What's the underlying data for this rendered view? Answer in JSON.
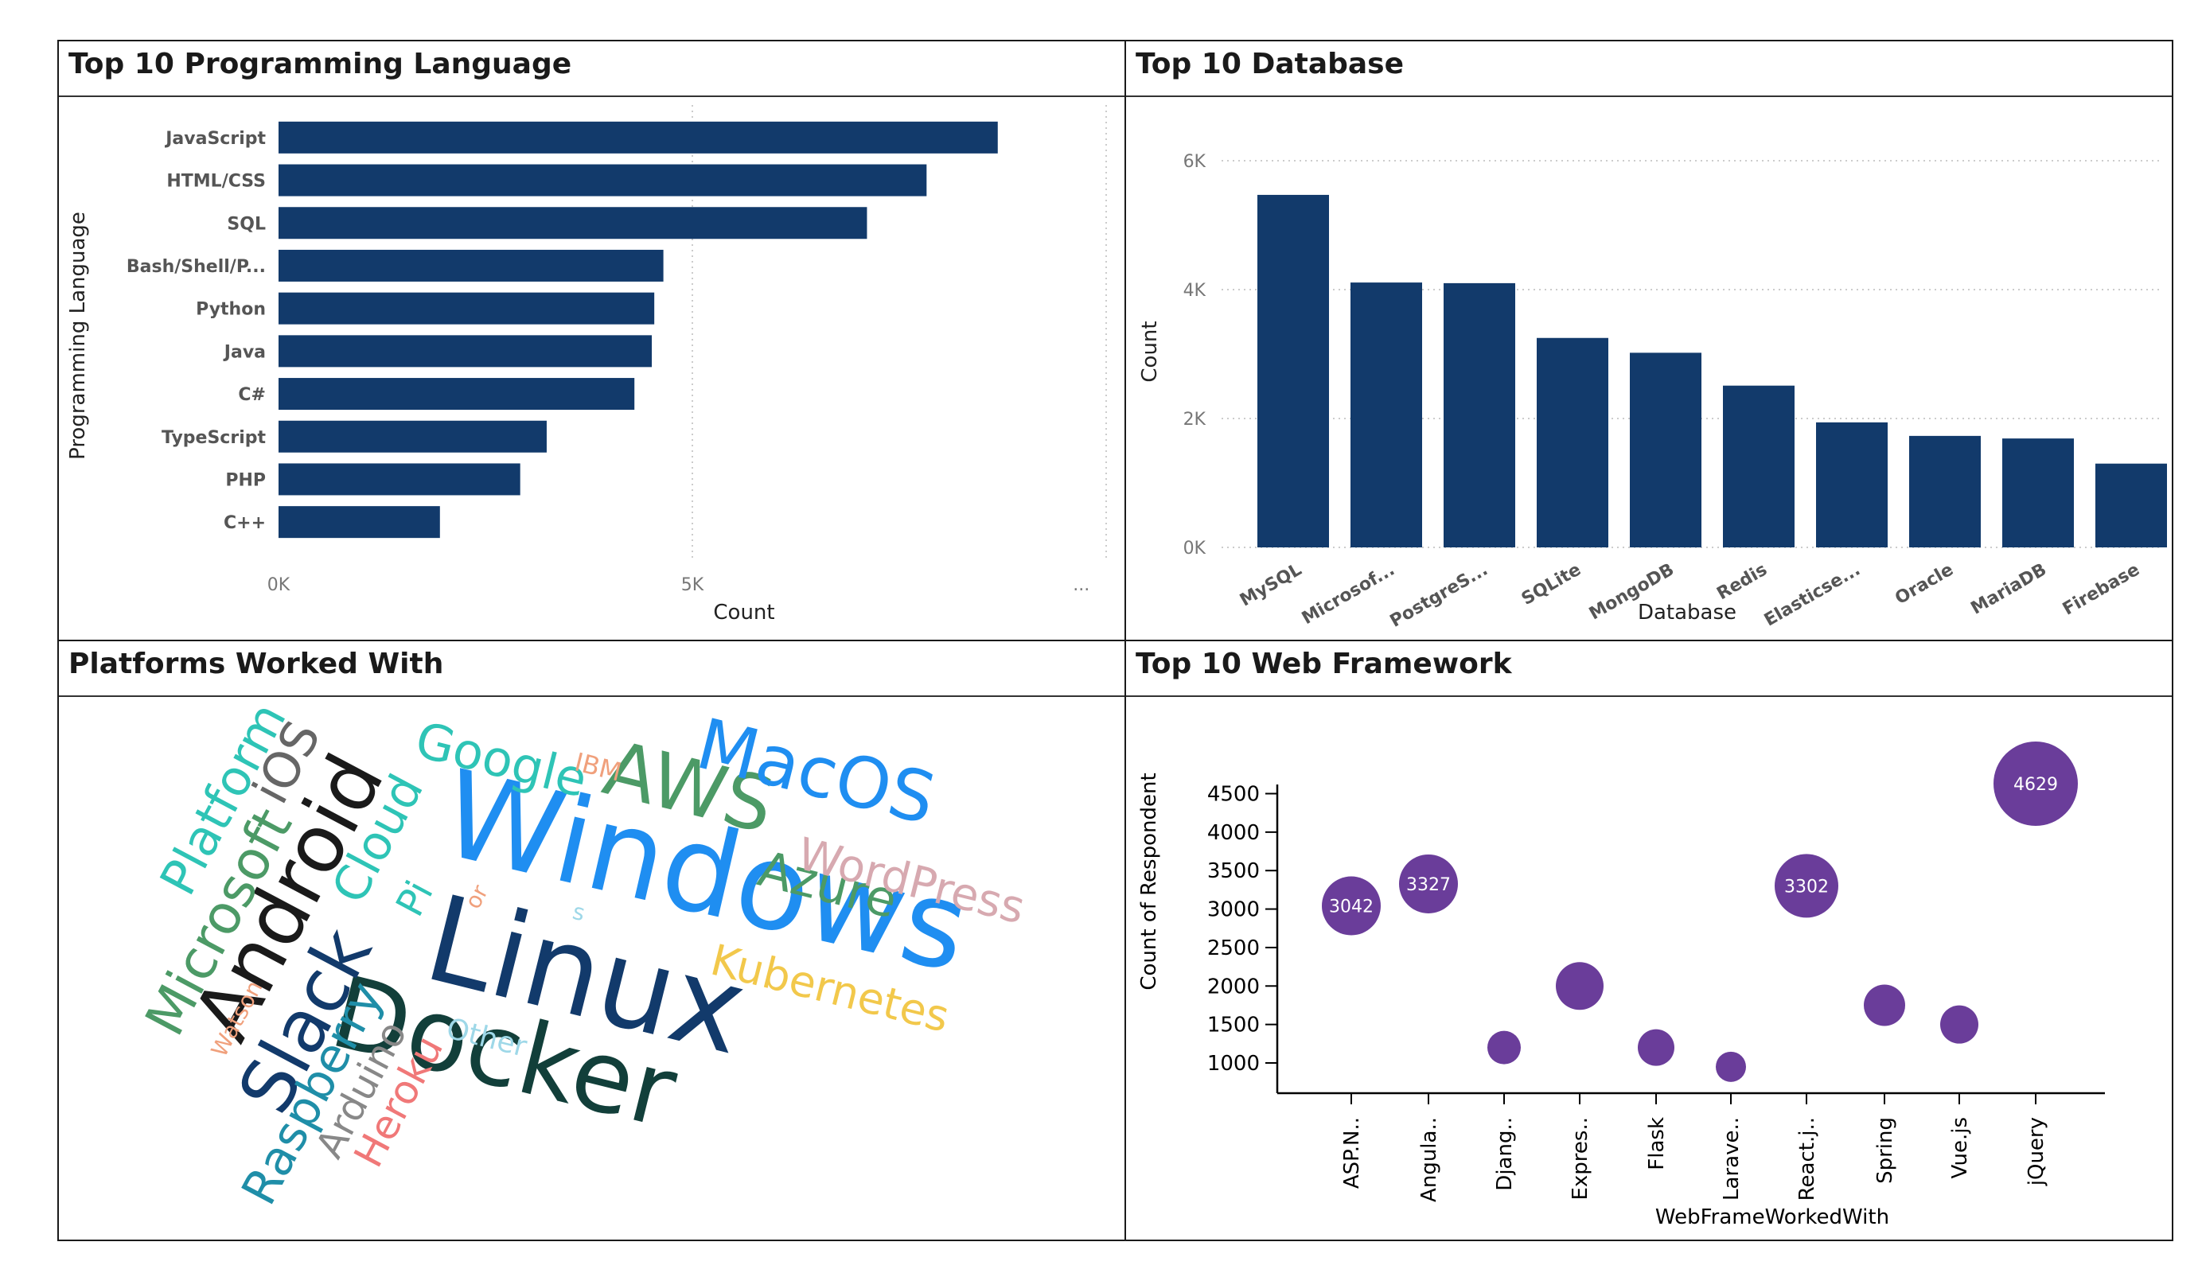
{
  "panels": {
    "languages": {
      "title": "Top 10 Programming Language"
    },
    "database": {
      "title": "Top 10 Database"
    },
    "platforms": {
      "title": "Platforms Worked With"
    },
    "web": {
      "title": "Top 10 Web Framework"
    }
  },
  "chart_data": [
    {
      "type": "bar",
      "orientation": "horizontal",
      "title": "Top 10 Programming Language",
      "xlabel": "Count",
      "ylabel": "Programming Language",
      "categories": [
        "JavaScript",
        "HTML/CSS",
        "SQL",
        "Bash/Shell/P...",
        "Python",
        "Java",
        "C#",
        "TypeScript",
        "PHP",
        "C++"
      ],
      "values": [
        8690,
        7830,
        7110,
        4650,
        4540,
        4510,
        4300,
        3240,
        2920,
        1950
      ],
      "xlim": [
        0,
        10000
      ],
      "xticks": [
        "0K",
        "5K",
        "..."
      ],
      "color": "#123a6b",
      "grid": true
    },
    {
      "type": "bar",
      "title": "Top 10 Database",
      "xlabel": "Database",
      "ylabel": "Count",
      "categories": [
        "MySQL",
        "Microsof...",
        "PostgreS...",
        "SQLite",
        "MongoDB",
        "Redis",
        "Elasticse...",
        "Oracle",
        "MariaDB",
        "Firebase"
      ],
      "values": [
        5470,
        4110,
        4100,
        3250,
        3020,
        2510,
        1940,
        1730,
        1690,
        1300
      ],
      "ylim": [
        0,
        6000
      ],
      "yticks": [
        "0K",
        "2K",
        "4K",
        "6K"
      ],
      "color": "#123a6b",
      "grid": true
    },
    {
      "type": "scatter",
      "subtype": "bubble",
      "title": "Top 10 Web Framework",
      "xlabel": "WebFrameWorkedWith",
      "ylabel": "Count of Respondent",
      "categories": [
        "ASP.N..",
        "Angula..",
        "Djang..",
        "Expres..",
        "Flask",
        "Larave..",
        "React.j..",
        "Spring",
        "Vue.js",
        "jQuery"
      ],
      "values": [
        3042,
        3327,
        1200,
        2000,
        1200,
        950,
        3302,
        1750,
        1500,
        4629
      ],
      "labels": [
        "3042",
        "3327",
        "",
        "",
        "",
        "",
        "3302",
        "",
        "",
        "4629"
      ],
      "yticks": [
        1000,
        1500,
        2000,
        2500,
        3000,
        3500,
        4000,
        4500
      ],
      "ylim": [
        700,
        4700
      ],
      "color": "#6a3d9a"
    }
  ],
  "wordcloud": {
    "words": [
      {
        "text": "Windows",
        "color": "#1f8ef1"
      },
      {
        "text": "Linux",
        "color": "#123a6b"
      },
      {
        "text": "Docker",
        "color": "#123f3a"
      },
      {
        "text": "AWS",
        "color": "#4c9a66"
      },
      {
        "text": "MacOS",
        "color": "#1f8ef1"
      },
      {
        "text": "Android",
        "color": "#1a1a1a"
      },
      {
        "text": "Slack",
        "color": "#123a6b"
      },
      {
        "text": "Google",
        "color": "#2ec4b6"
      },
      {
        "text": "Azure",
        "color": "#4c9a66"
      },
      {
        "text": "WordPress",
        "color": "#d7a9b0"
      },
      {
        "text": "Kubernetes",
        "color": "#f2c84b"
      },
      {
        "text": "Microsoft",
        "color": "#4c9a66"
      },
      {
        "text": "Platform",
        "color": "#2ec4b6"
      },
      {
        "text": "iOS",
        "color": "#666666"
      },
      {
        "text": "Cloud",
        "color": "#2ec4b6"
      },
      {
        "text": "Pi",
        "color": "#2ec4b6"
      },
      {
        "text": "Raspberry",
        "color": "#1f8ea8"
      },
      {
        "text": "Arduino",
        "color": "#888888"
      },
      {
        "text": "Heroku",
        "color": "#f07878"
      },
      {
        "text": "Other",
        "color": "#9ed8e8"
      },
      {
        "text": "Watson",
        "color": "#f0a07c"
      },
      {
        "text": "IBM",
        "color": "#f0a07c"
      },
      {
        "text": "or",
        "color": "#f0a07c"
      },
      {
        "text": "s",
        "color": "#9ed8e8"
      }
    ]
  }
}
